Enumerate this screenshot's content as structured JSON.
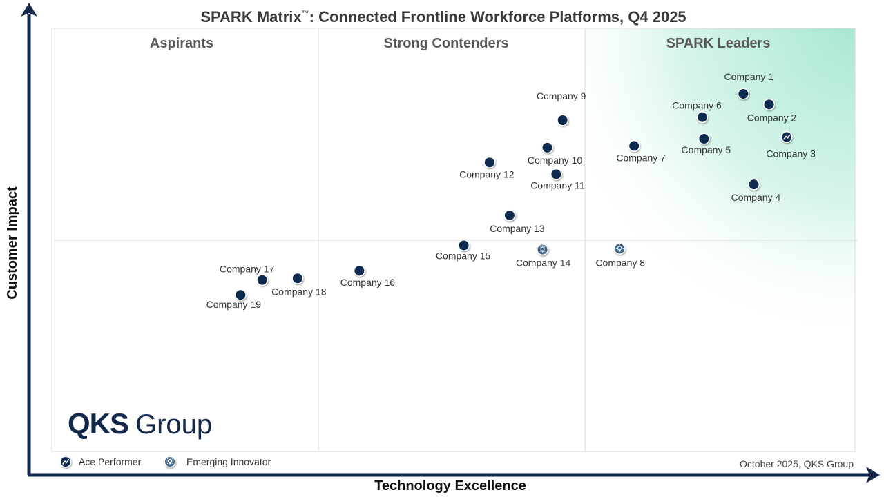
{
  "chart_data": {
    "type": "scatter",
    "title_main": "SPARK Matrix",
    "title_tm": "™",
    "title_rest": ": Connected Frontline Workforce Platforms, Q4 2025",
    "xlabel": "Technology Excellence",
    "ylabel": "Customer Impact",
    "xlim": [
      0,
      1
    ],
    "ylim": [
      0,
      1
    ],
    "zones": [
      "Aspirants",
      "Strong Contenders",
      "SPARK Leaders"
    ],
    "points": [
      {
        "name": "Company 1",
        "x": 0.861,
        "y": 0.845,
        "type": "standard"
      },
      {
        "name": "Company 2",
        "x": 0.893,
        "y": 0.82,
        "type": "standard"
      },
      {
        "name": "Company 3",
        "x": 0.915,
        "y": 0.743,
        "type": "ace"
      },
      {
        "name": "Company 4",
        "x": 0.874,
        "y": 0.631,
        "type": "standard"
      },
      {
        "name": "Company 5",
        "x": 0.812,
        "y": 0.739,
        "type": "standard"
      },
      {
        "name": "Company 6",
        "x": 0.81,
        "y": 0.79,
        "type": "standard"
      },
      {
        "name": "Company 7",
        "x": 0.725,
        "y": 0.722,
        "type": "standard"
      },
      {
        "name": "Company 8",
        "x": 0.707,
        "y": 0.479,
        "type": "emerging"
      },
      {
        "name": "Company 9",
        "x": 0.636,
        "y": 0.783,
        "type": "standard"
      },
      {
        "name": "Company 10",
        "x": 0.617,
        "y": 0.718,
        "type": "standard"
      },
      {
        "name": "Company 11",
        "x": 0.628,
        "y": 0.655,
        "type": "standard"
      },
      {
        "name": "Company 12",
        "x": 0.545,
        "y": 0.683,
        "type": "standard"
      },
      {
        "name": "Company 13",
        "x": 0.57,
        "y": 0.558,
        "type": "standard"
      },
      {
        "name": "Company 14",
        "x": 0.611,
        "y": 0.477,
        "type": "emerging"
      },
      {
        "name": "Company 15",
        "x": 0.513,
        "y": 0.487,
        "type": "standard"
      },
      {
        "name": "Company 16",
        "x": 0.383,
        "y": 0.427,
        "type": "standard"
      },
      {
        "name": "Company 17",
        "x": 0.262,
        "y": 0.405,
        "type": "standard"
      },
      {
        "name": "Company 18",
        "x": 0.306,
        "y": 0.409,
        "type": "standard"
      },
      {
        "name": "Company 19",
        "x": 0.235,
        "y": 0.37,
        "type": "standard"
      }
    ],
    "legend": [
      {
        "label": "Ace Performer",
        "type": "ace"
      },
      {
        "label": "Emerging Innovator",
        "type": "emerging"
      }
    ],
    "footer_note": "October 2025, QKS Group",
    "logo_bold": "QKS",
    "logo_regular": "Group"
  },
  "colors": {
    "marker": "#0f2a4f",
    "emerging_marker": "#3d6385",
    "leader_gradient": "#a9e8d3",
    "axis": "#13294b",
    "grid": "#d9d9d9"
  }
}
